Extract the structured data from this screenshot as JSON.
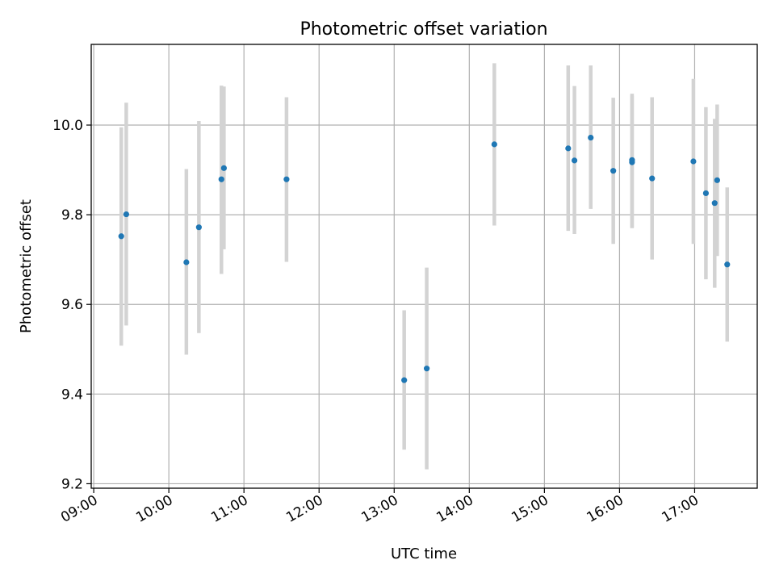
{
  "chart_data": {
    "type": "scatter",
    "title": "Photometric offset variation",
    "xlabel": "UTC time",
    "ylabel": "Photometric offset",
    "x_ticks": [
      "09:00",
      "10:00",
      "11:00",
      "12:00",
      "13:00",
      "14:00",
      "15:00",
      "16:00",
      "17:00"
    ],
    "y_ticks": [
      "9.2",
      "9.4",
      "9.6",
      "9.8",
      "10.0"
    ],
    "xlim": [
      "08:58",
      "17:50"
    ],
    "ylim": [
      9.19,
      10.18
    ],
    "grid": true,
    "point_color": "#1f77b4",
    "errorbar_color": "#d3d3d3",
    "points": [
      {
        "time": "09:22",
        "y": 9.752,
        "low": 9.508,
        "high": 9.995
      },
      {
        "time": "09:26",
        "y": 9.801,
        "low": 9.553,
        "high": 10.05
      },
      {
        "time": "10:14",
        "y": 9.694,
        "low": 9.488,
        "high": 9.902
      },
      {
        "time": "10:24",
        "y": 9.772,
        "low": 9.536,
        "high": 10.009
      },
      {
        "time": "10:42",
        "y": 9.879,
        "low": 9.668,
        "high": 10.088
      },
      {
        "time": "10:44",
        "y": 9.904,
        "low": 9.723,
        "high": 10.086
      },
      {
        "time": "11:34",
        "y": 9.879,
        "low": 9.695,
        "high": 10.062
      },
      {
        "time": "13:08",
        "y": 9.431,
        "low": 9.276,
        "high": 9.587
      },
      {
        "time": "13:26",
        "y": 9.457,
        "low": 9.232,
        "high": 9.682
      },
      {
        "time": "14:20",
        "y": 9.957,
        "low": 9.776,
        "high": 10.138
      },
      {
        "time": "15:19",
        "y": 9.948,
        "low": 9.764,
        "high": 10.133
      },
      {
        "time": "15:24",
        "y": 9.921,
        "low": 9.757,
        "high": 10.087
      },
      {
        "time": "15:37",
        "y": 9.972,
        "low": 9.813,
        "high": 10.133
      },
      {
        "time": "15:55",
        "y": 9.898,
        "low": 9.735,
        "high": 10.061
      },
      {
        "time": "16:10",
        "y": 9.917,
        "low": 9.771,
        "high": 10.066
      },
      {
        "time": "16:10",
        "y": 9.922,
        "low": 9.77,
        "high": 10.07
      },
      {
        "time": "16:26",
        "y": 9.881,
        "low": 9.7,
        "high": 10.062
      },
      {
        "time": "16:59",
        "y": 9.919,
        "low": 9.735,
        "high": 10.103
      },
      {
        "time": "17:09",
        "y": 9.848,
        "low": 9.656,
        "high": 10.04
      },
      {
        "time": "17:16",
        "y": 9.826,
        "low": 9.637,
        "high": 10.014
      },
      {
        "time": "17:18",
        "y": 9.877,
        "low": 9.708,
        "high": 10.046
      },
      {
        "time": "17:26",
        "y": 9.689,
        "low": 9.517,
        "high": 9.861
      }
    ]
  }
}
